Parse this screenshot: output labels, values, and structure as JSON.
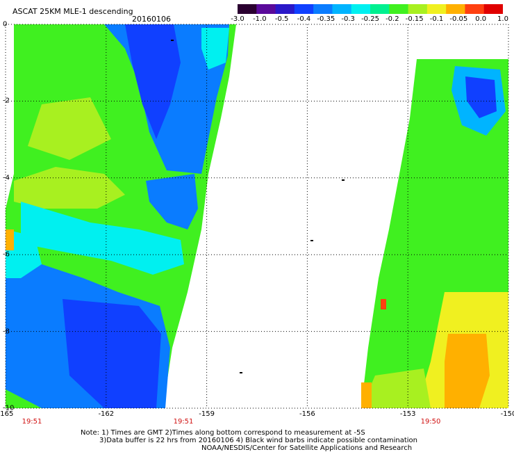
{
  "header": {
    "title": "ASCAT 25KM MLE-1 descending",
    "date": "20160106"
  },
  "colorbar": {
    "tick_labels": [
      "-3.0",
      "-1.0",
      "-0.5",
      "-0.4",
      "-0.35",
      "-0.3",
      "-0.25",
      "-0.2",
      "-0.15",
      "-0.1",
      "-0.05",
      "0.0",
      "1.0"
    ],
    "colors": [
      "#2a0030",
      "#5a0a9a",
      "#2a18c8",
      "#1040ff",
      "#0a7cff",
      "#00b4ff",
      "#00f0f0",
      "#00f090",
      "#40f020",
      "#a8f020",
      "#f0f020",
      "#ffb000",
      "#ff4010",
      "#e00000"
    ]
  },
  "map": {
    "lat_ticks": [
      "0",
      "-2",
      "-4",
      "-6",
      "-8",
      "-10"
    ],
    "lon_ticks": [
      "-165",
      "-162",
      "-159",
      "-156",
      "-153",
      "-150"
    ],
    "pass_times": [
      "19:51",
      "19:51",
      "19:50"
    ]
  },
  "notes": {
    "line1": "Note: 1) Times are GMT 2)Times along bottom correspond to measurement at -5S",
    "line2": "3)Data buffer is 22 hrs from 20160106 4) Black wind barbs indicate possible contamination",
    "line3": "NOAA/NESDIS/Center for Satellite Applications and Research"
  }
}
